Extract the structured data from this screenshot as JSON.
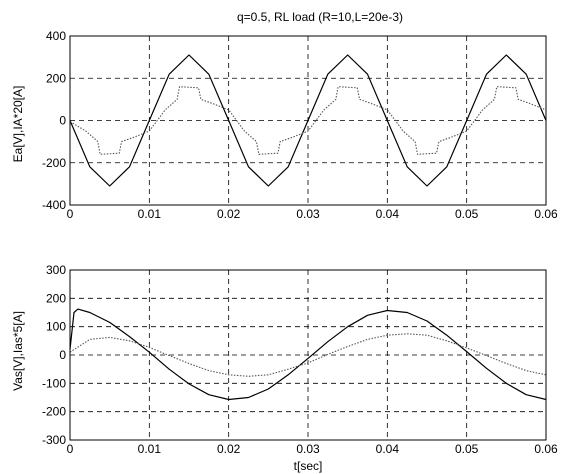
{
  "chart_data": [
    {
      "type": "line",
      "title": "q=0.5, RL load (R=10,L=20e-3)",
      "xlabel": "",
      "ylabel": "Ea[V],IA*20[A]",
      "xlim": [
        0,
        0.06
      ],
      "ylim": [
        -400,
        400
      ],
      "xticks": [
        "0",
        "0.01",
        "0.02",
        "0.03",
        "0.04",
        "0.05",
        "0.06"
      ],
      "yticks": [
        "400",
        "200",
        "0",
        "-200",
        "-400"
      ],
      "grid": true,
      "series": [
        {
          "color": "#000000",
          "style": "solid",
          "x": [
            0,
            0.0025,
            0.005,
            0.0075,
            0.01,
            0.0125,
            0.015,
            0.0175,
            0.02,
            0.0225,
            0.025,
            0.0275,
            0.03,
            0.0325,
            0.035,
            0.0375,
            0.04,
            0.0425,
            0.045,
            0.0475,
            0.05,
            0.0525,
            0.055,
            0.0575,
            0.06
          ],
          "y": [
            0,
            -219,
            -310,
            -219,
            0,
            219,
            310,
            219,
            0,
            -219,
            -310,
            -219,
            0,
            219,
            310,
            219,
            0,
            -219,
            -310,
            -219,
            0,
            219,
            310,
            219,
            0
          ]
        },
        {
          "color": "#555555",
          "style": "dotted",
          "x": [
            0,
            0.002,
            0.0035,
            0.0038,
            0.0062,
            0.0065,
            0.008,
            0.01,
            0.012,
            0.0135,
            0.0138,
            0.0162,
            0.0165,
            0.018,
            0.02,
            0.022,
            0.0235,
            0.0238,
            0.0262,
            0.0265,
            0.028,
            0.03,
            0.032,
            0.0335,
            0.0338,
            0.0362,
            0.0365,
            0.038,
            0.04,
            0.042,
            0.0435,
            0.0438,
            0.0462,
            0.0465,
            0.048,
            0.05,
            0.052,
            0.0535,
            0.0538,
            0.0562,
            0.0565,
            0.058,
            0.06
          ],
          "y": [
            -5,
            -50,
            -100,
            -160,
            -155,
            -100,
            -80,
            -50,
            50,
            100,
            160,
            155,
            100,
            80,
            50,
            -50,
            -100,
            -160,
            -155,
            -100,
            -80,
            -50,
            50,
            100,
            160,
            155,
            100,
            80,
            50,
            -50,
            -100,
            -160,
            -155,
            -100,
            -80,
            -50,
            50,
            100,
            160,
            155,
            100,
            80,
            50
          ]
        }
      ]
    },
    {
      "type": "line",
      "title": "",
      "xlabel": "t[sec]",
      "ylabel": "Vas[V],Ias*5[A]",
      "xlim": [
        0,
        0.06
      ],
      "ylim": [
        -300,
        300
      ],
      "xticks": [
        "0",
        "0.01",
        "0.02",
        "0.03",
        "0.04",
        "0.05",
        "0.06"
      ],
      "yticks": [
        "300",
        "200",
        "100",
        "0",
        "-100",
        "-200",
        "-300"
      ],
      "grid": true,
      "series": [
        {
          "color": "#000000",
          "style": "solid",
          "x": [
            0,
            0.0005,
            0.001,
            0.0025,
            0.005,
            0.0075,
            0.01,
            0.0125,
            0.015,
            0.0175,
            0.02,
            0.0225,
            0.025,
            0.0275,
            0.03,
            0.0325,
            0.035,
            0.0375,
            0.04,
            0.0425,
            0.045,
            0.0475,
            0.05,
            0.0525,
            0.055,
            0.0575,
            0.06
          ],
          "y": [
            20,
            150,
            162,
            150,
            115,
            65,
            10,
            -50,
            -102,
            -140,
            -157,
            -150,
            -120,
            -70,
            -12,
            47,
            100,
            140,
            157,
            150,
            120,
            70,
            12,
            -47,
            -100,
            -140,
            -157
          ]
        },
        {
          "color": "#555555",
          "style": "dotted",
          "x": [
            0,
            0.0025,
            0.005,
            0.0075,
            0.01,
            0.0125,
            0.015,
            0.0175,
            0.02,
            0.0225,
            0.025,
            0.0275,
            0.03,
            0.0325,
            0.035,
            0.0375,
            0.04,
            0.0425,
            0.045,
            0.0475,
            0.05,
            0.0525,
            0.055,
            0.0575,
            0.06
          ],
          "y": [
            10,
            55,
            62,
            50,
            27,
            -2,
            -30,
            -55,
            -70,
            -75,
            -70,
            -50,
            -28,
            2,
            30,
            55,
            70,
            75,
            70,
            50,
            25,
            -2,
            -30,
            -55,
            -70
          ]
        }
      ]
    }
  ]
}
